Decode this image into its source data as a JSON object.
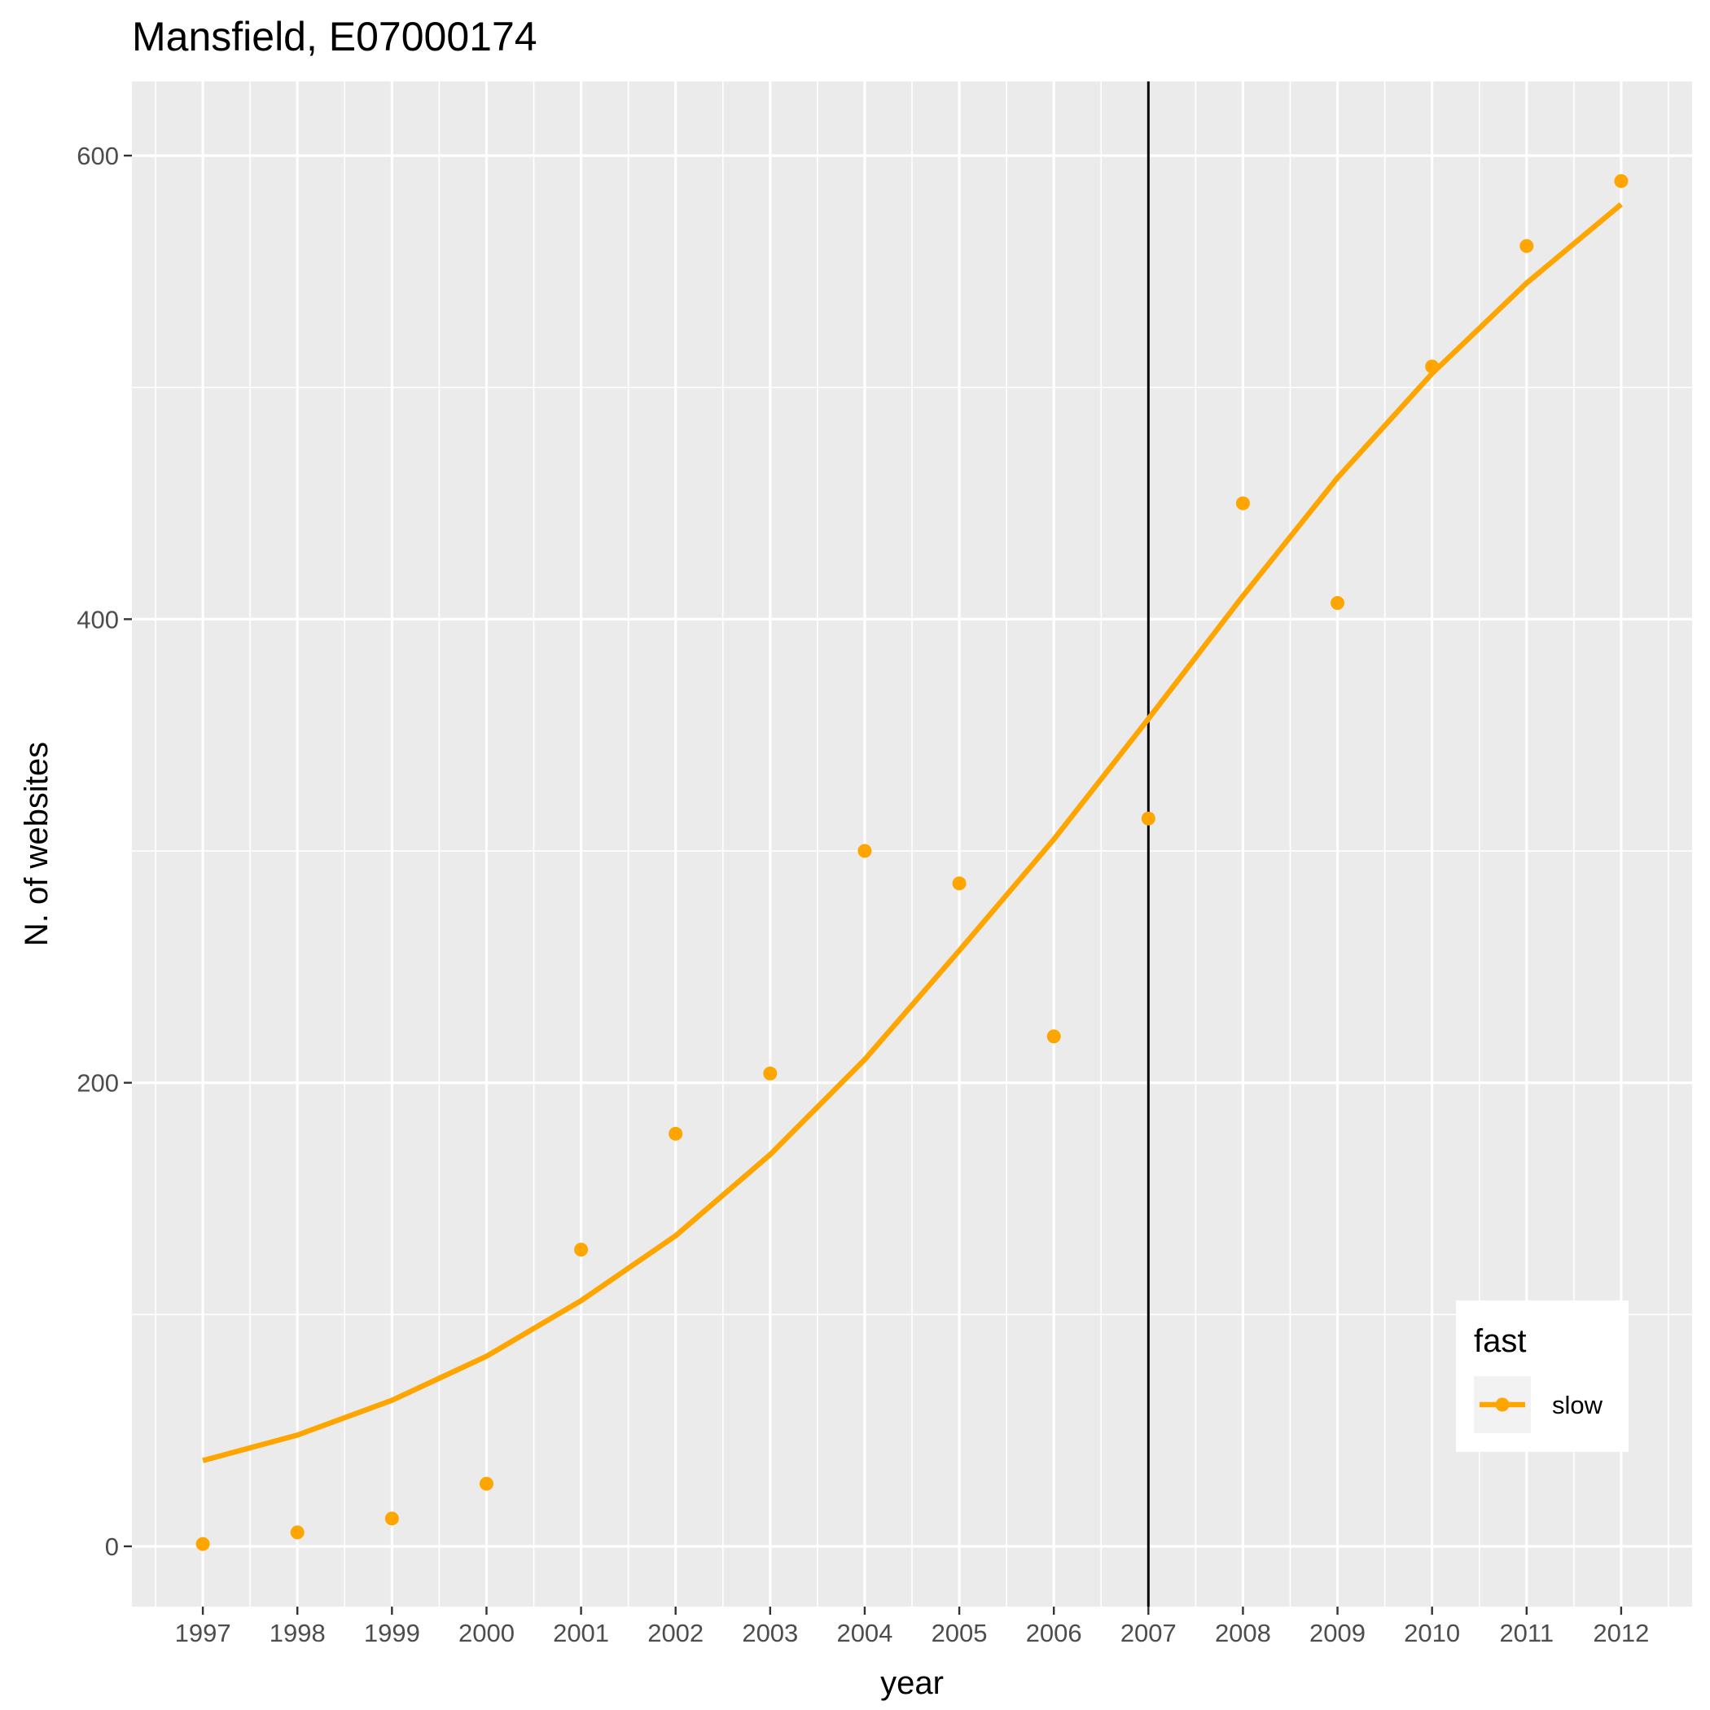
{
  "chart_data": {
    "type": "scatter",
    "title": "Mansfield, E07000174",
    "xlabel": "year",
    "ylabel": "N. of websites",
    "x": [
      1997,
      1998,
      1999,
      2000,
      2001,
      2002,
      2003,
      2004,
      2005,
      2006,
      2007,
      2008,
      2009,
      2010,
      2011,
      2012
    ],
    "x_ticks": [
      "1997",
      "1998",
      "1999",
      "2000",
      "2001",
      "2002",
      "2003",
      "2004",
      "2005",
      "2006",
      "2007",
      "2008",
      "2009",
      "2010",
      "2011",
      "2012"
    ],
    "y_ticks": [
      "0",
      "200",
      "400",
      "600"
    ],
    "xlim": [
      1996.25,
      2012.75
    ],
    "ylim": [
      -26,
      632
    ],
    "series": [
      {
        "name": "slow",
        "points": [
          1,
          6,
          12,
          27,
          128,
          178,
          204,
          300,
          286,
          220,
          314,
          450,
          407,
          509,
          561,
          589
        ],
        "smooth": [
          37,
          48,
          63,
          82,
          106,
          134,
          169,
          210,
          257,
          305,
          357,
          410,
          461,
          506,
          545,
          579
        ]
      }
    ],
    "vline_x": 2007,
    "legend": {
      "title": "fast",
      "position": "bottom-right"
    },
    "grid": true,
    "colors": {
      "series": "#FFA500",
      "panel": "#EBEBEB",
      "grid": "#FFFFFF",
      "vline": "#000000"
    }
  }
}
